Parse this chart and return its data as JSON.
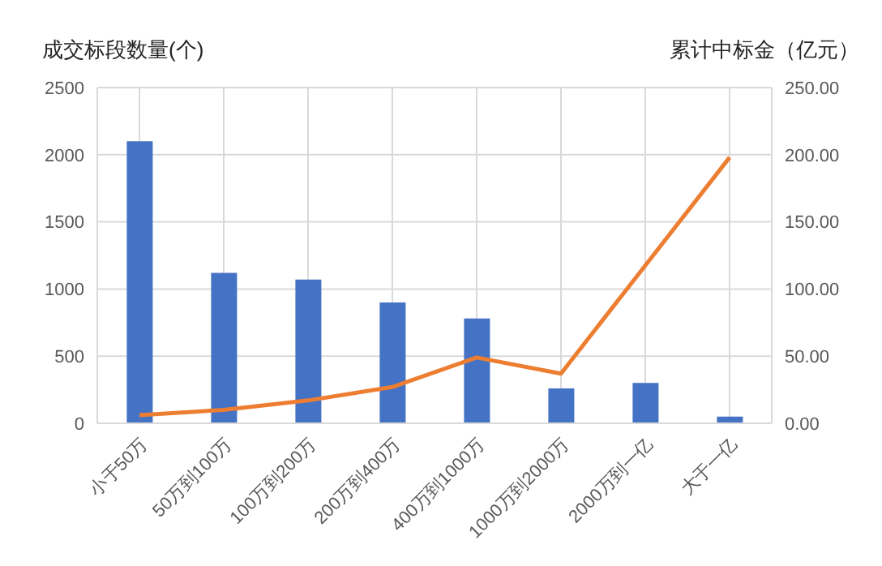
{
  "chart_data": {
    "type": "bar",
    "ylabel": "成交标段数量(个)",
    "y2label": "累计中标金（亿元）",
    "categories": [
      "小于50万",
      "50万到100万",
      "100万到200万",
      "200万到400万",
      "400万到1000万",
      "1000万到2000万",
      "2000万到一亿",
      "大于一亿"
    ],
    "series": [
      {
        "color": "#4472c4",
        "values": [
          2100,
          1120,
          1070,
          900,
          780,
          260,
          300,
          50
        ]
      },
      {
        "type": "line",
        "axis": "y2",
        "color": "#ed7d31",
        "values": [
          6,
          10,
          17,
          27,
          49,
          37,
          null,
          198
        ]
      }
    ],
    "ylim": [
      0,
      2500
    ],
    "yticks": [
      0,
      500,
      1000,
      1500,
      2000,
      2500
    ],
    "y2lim": [
      0,
      250
    ],
    "y2ticks": [
      {
        "value": 0,
        "label": "0.00"
      },
      {
        "value": 50,
        "label": "50.00"
      },
      {
        "value": 100,
        "label": "100.00"
      },
      {
        "value": 150,
        "label": "150.00"
      },
      {
        "value": 200,
        "label": "200.00"
      },
      {
        "value": 250,
        "label": "250.00"
      }
    ],
    "grid": true,
    "marker": "none",
    "line_style": "solid"
  }
}
